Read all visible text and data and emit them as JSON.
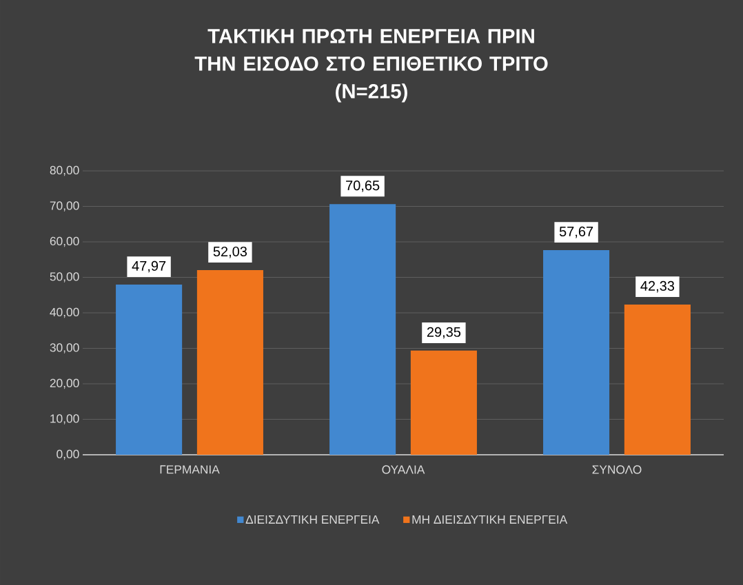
{
  "chart_data": {
    "type": "bar",
    "title": "ΤΑΚΤΙΚΗ ΠΡΩΤΗ ΕΝΕΡΓΕΙΑ ΠΡΙΝ ΤΗΝ ΕΙΣΟΔΟ ΣΤΟ ΕΠΙΘΕΤΙΚΟ ΤΡΙΤΟ",
    "subtitle": "(N=215)",
    "categories": [
      "ΓΕΡΜΑΝΙΑ",
      "ΟΥΑΛΙΑ",
      "ΣΥΝΟΛΟ"
    ],
    "series": [
      {
        "name": "ΔΙΕΙΣΔΥΤΙΚΗ ΕΝΕΡΓΕΙΑ",
        "color": "#4288d0",
        "values": [
          47.97,
          70.65,
          57.67
        ],
        "value_labels": [
          "47,97",
          "70,65",
          "57,67"
        ]
      },
      {
        "name": "ΜΗ ΔΙΕΙΣΔΥΤΙΚΗ ΕΝΕΡΓΕΙΑ",
        "color": "#f0741c",
        "values": [
          52.03,
          29.35,
          42.33
        ],
        "value_labels": [
          "52,03",
          "29,35",
          "42,33"
        ]
      }
    ],
    "ylim": [
      0,
      80
    ],
    "yticks": [
      {
        "value": 0,
        "label": "0,00"
      },
      {
        "value": 10,
        "label": "10,00"
      },
      {
        "value": 20,
        "label": "20,00"
      },
      {
        "value": 30,
        "label": "30,00"
      },
      {
        "value": 40,
        "label": "40,00"
      },
      {
        "value": 50,
        "label": "50,00"
      },
      {
        "value": 60,
        "label": "60,00"
      },
      {
        "value": 70,
        "label": "70,00"
      },
      {
        "value": 80,
        "label": "80,00"
      }
    ],
    "grid": "y",
    "legend": "bottom"
  }
}
